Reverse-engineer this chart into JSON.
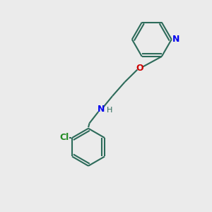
{
  "background_color": "#ebebeb",
  "bond_color": "#2d6b5a",
  "N_color": "#0000ee",
  "O_color": "#cc0000",
  "Cl_color": "#228b22",
  "H_color": "#2d6b5a",
  "line_width": 1.5,
  "figsize": [
    3.0,
    3.0
  ],
  "dpi": 100,
  "xlim": [
    0,
    10
  ],
  "ylim": [
    0,
    10
  ]
}
